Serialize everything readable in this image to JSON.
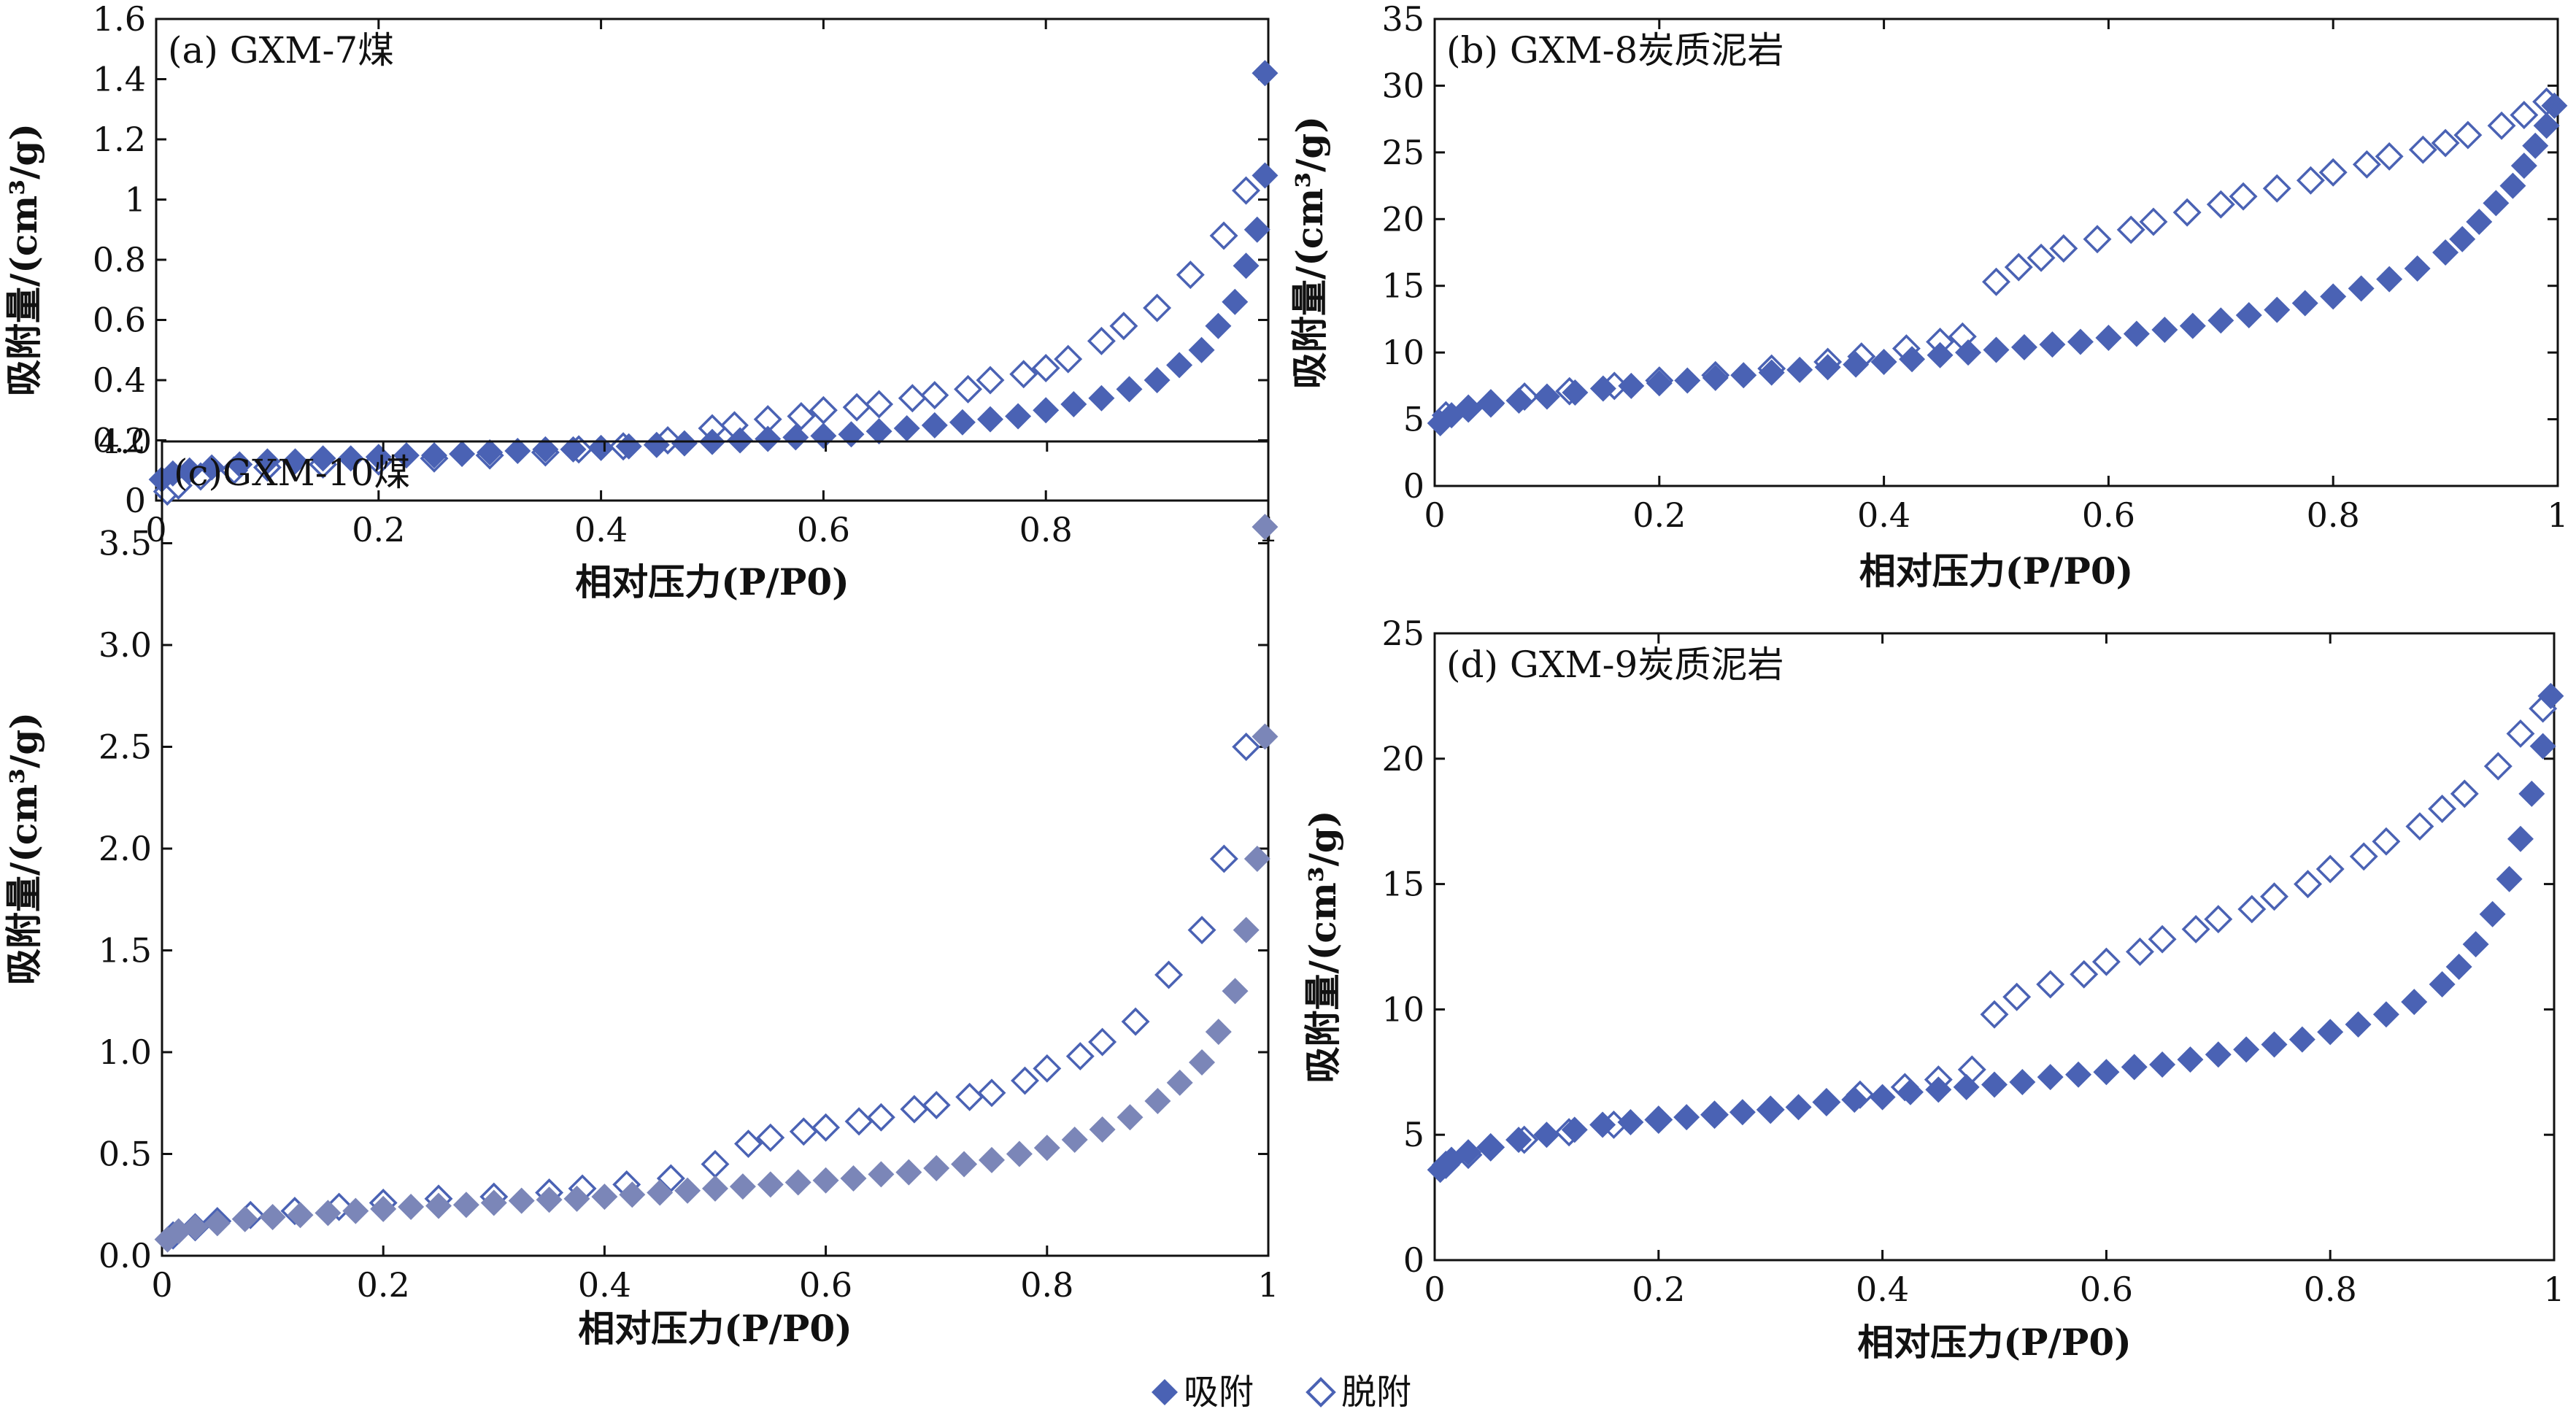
{
  "legend": {
    "adsorption_label": "吸附",
    "desorption_label": "脱附",
    "adsorption_marker": "filled-diamond-icon",
    "desorption_marker": "open-diamond-icon"
  },
  "colors": {
    "marker": "#4a62b4",
    "marker_alt": "#7b86b8",
    "axis": "#111111"
  },
  "chart_data": [
    {
      "type": "scatter",
      "title": "(a) GXM-7煤",
      "xlabel": "相对压力(P/P0)",
      "ylabel": "吸附量/(cm³/g)",
      "xlim": [
        0,
        1
      ],
      "ylim": [
        0,
        1.6
      ],
      "xticks": [
        "0",
        "0.2",
        "0.4",
        "0.6",
        "0.8",
        "1"
      ],
      "yticks": [
        "0",
        "0.2",
        "0.4",
        "0.6",
        "0.8",
        "1",
        "1.2",
        "1.4",
        "1.6"
      ],
      "series": [
        {
          "name": "吸附",
          "marker": "filled",
          "x": [
            0.005,
            0.015,
            0.03,
            0.05,
            0.075,
            0.1,
            0.125,
            0.15,
            0.175,
            0.2,
            0.225,
            0.25,
            0.275,
            0.3,
            0.325,
            0.35,
            0.375,
            0.4,
            0.425,
            0.45,
            0.475,
            0.5,
            0.525,
            0.55,
            0.575,
            0.6,
            0.625,
            0.65,
            0.675,
            0.7,
            0.725,
            0.75,
            0.775,
            0.8,
            0.825,
            0.85,
            0.875,
            0.9,
            0.92,
            0.94,
            0.955,
            0.97,
            0.98,
            0.99,
            0.997
          ],
          "y": [
            0.07,
            0.09,
            0.1,
            0.11,
            0.12,
            0.13,
            0.13,
            0.14,
            0.14,
            0.145,
            0.15,
            0.15,
            0.155,
            0.16,
            0.165,
            0.17,
            0.17,
            0.175,
            0.18,
            0.185,
            0.19,
            0.195,
            0.2,
            0.205,
            0.21,
            0.215,
            0.22,
            0.23,
            0.24,
            0.25,
            0.26,
            0.27,
            0.28,
            0.3,
            0.32,
            0.34,
            0.37,
            0.4,
            0.45,
            0.5,
            0.58,
            0.66,
            0.78,
            0.9,
            1.08
          ]
        },
        {
          "name": "脱附",
          "marker": "open",
          "x": [
            0.01,
            0.02,
            0.04,
            0.07,
            0.1,
            0.15,
            0.2,
            0.25,
            0.3,
            0.35,
            0.38,
            0.42,
            0.46,
            0.5,
            0.52,
            0.55,
            0.58,
            0.6,
            0.63,
            0.65,
            0.68,
            0.7,
            0.73,
            0.75,
            0.78,
            0.8,
            0.82,
            0.85,
            0.87,
            0.9,
            0.93,
            0.96,
            0.98
          ],
          "y": [
            0.03,
            0.05,
            0.08,
            0.1,
            0.11,
            0.12,
            0.13,
            0.14,
            0.15,
            0.16,
            0.17,
            0.18,
            0.2,
            0.24,
            0.25,
            0.27,
            0.28,
            0.3,
            0.31,
            0.32,
            0.34,
            0.35,
            0.37,
            0.4,
            0.42,
            0.44,
            0.47,
            0.53,
            0.58,
            0.64,
            0.75,
            0.88,
            1.03
          ]
        },
        {
          "name": "吸附",
          "marker": "filled",
          "x": [
            0.997
          ],
          "y": [
            1.42
          ]
        }
      ]
    },
    {
      "type": "scatter",
      "title": "(b) GXM-8炭质泥岩",
      "xlabel": "相对压力(P/P0)",
      "ylabel": "吸附量/(cm³/g)",
      "xlim": [
        0,
        1
      ],
      "ylim": [
        0,
        35
      ],
      "xticks": [
        "0",
        "0.2",
        "0.4",
        "0.6",
        "0.8",
        "1"
      ],
      "yticks": [
        "0",
        "5",
        "10",
        "15",
        "20",
        "25",
        "30",
        "35"
      ],
      "series": [
        {
          "name": "吸附",
          "marker": "filled",
          "x": [
            0.005,
            0.015,
            0.03,
            0.05,
            0.075,
            0.1,
            0.125,
            0.15,
            0.175,
            0.2,
            0.225,
            0.25,
            0.275,
            0.3,
            0.325,
            0.35,
            0.375,
            0.4,
            0.425,
            0.45,
            0.475,
            0.5,
            0.525,
            0.55,
            0.575,
            0.6,
            0.625,
            0.65,
            0.675,
            0.7,
            0.725,
            0.75,
            0.775,
            0.8,
            0.825,
            0.85,
            0.875,
            0.9,
            0.915,
            0.93,
            0.945,
            0.96,
            0.97,
            0.98,
            0.99,
            0.997
          ],
          "y": [
            4.7,
            5.3,
            5.8,
            6.1,
            6.4,
            6.7,
            7,
            7.3,
            7.5,
            7.7,
            7.9,
            8.1,
            8.3,
            8.5,
            8.7,
            8.9,
            9.1,
            9.3,
            9.5,
            9.8,
            10,
            10.2,
            10.4,
            10.6,
            10.8,
            11.1,
            11.4,
            11.7,
            12,
            12.4,
            12.8,
            13.2,
            13.7,
            14.2,
            14.8,
            15.5,
            16.3,
            17.5,
            18.5,
            19.8,
            21.2,
            22.5,
            24,
            25.5,
            27,
            28.5
          ]
        },
        {
          "name": "脱附",
          "marker": "open",
          "x": [
            0.01,
            0.03,
            0.05,
            0.08,
            0.12,
            0.16,
            0.2,
            0.25,
            0.3,
            0.35,
            0.38,
            0.42,
            0.45,
            0.47,
            0.5,
            0.52,
            0.54,
            0.56,
            0.59,
            0.62,
            0.64,
            0.67,
            0.7,
            0.72,
            0.75,
            0.78,
            0.8,
            0.83,
            0.85,
            0.88,
            0.9,
            0.92,
            0.95,
            0.97,
            0.99
          ],
          "y": [
            5.3,
            5.8,
            6.2,
            6.7,
            7.1,
            7.5,
            7.9,
            8.3,
            8.8,
            9.3,
            9.7,
            10.3,
            10.8,
            11.2,
            15.3,
            16.4,
            17.1,
            17.8,
            18.5,
            19.2,
            19.8,
            20.5,
            21.1,
            21.7,
            22.3,
            22.9,
            23.5,
            24.1,
            24.7,
            25.2,
            25.7,
            26.3,
            27,
            27.8,
            28.8
          ]
        }
      ]
    },
    {
      "type": "scatter",
      "title": "(c)GXM-10煤",
      "xlabel": "相对压力(P/P0)",
      "ylabel": "吸附量/(cm³/g)",
      "xlim": [
        0,
        1
      ],
      "ylim": [
        0,
        4.0
      ],
      "xticks": [
        "0",
        "0.2",
        "0.4",
        "0.6",
        "0.8",
        "1"
      ],
      "yticks": [
        "0.0",
        "0.5",
        "1.0",
        "1.5",
        "2.0",
        "2.5",
        "3.0",
        "3.5",
        "4.0"
      ],
      "series": [
        {
          "name": "吸附",
          "marker": "filled",
          "x": [
            0.005,
            0.015,
            0.03,
            0.05,
            0.075,
            0.1,
            0.125,
            0.15,
            0.175,
            0.2,
            0.225,
            0.25,
            0.275,
            0.3,
            0.325,
            0.35,
            0.375,
            0.4,
            0.425,
            0.45,
            0.475,
            0.5,
            0.525,
            0.55,
            0.575,
            0.6,
            0.625,
            0.65,
            0.675,
            0.7,
            0.725,
            0.75,
            0.775,
            0.8,
            0.825,
            0.85,
            0.875,
            0.9,
            0.92,
            0.94,
            0.955,
            0.97,
            0.98,
            0.99,
            0.997
          ],
          "y": [
            0.08,
            0.12,
            0.14,
            0.16,
            0.18,
            0.19,
            0.2,
            0.21,
            0.22,
            0.23,
            0.24,
            0.245,
            0.25,
            0.26,
            0.27,
            0.275,
            0.28,
            0.29,
            0.3,
            0.31,
            0.32,
            0.33,
            0.34,
            0.35,
            0.36,
            0.37,
            0.38,
            0.4,
            0.41,
            0.43,
            0.45,
            0.47,
            0.5,
            0.53,
            0.57,
            0.62,
            0.68,
            0.76,
            0.85,
            0.95,
            1.1,
            1.3,
            1.6,
            1.95,
            2.55
          ]
        },
        {
          "name": "脱附",
          "marker": "open",
          "x": [
            0.01,
            0.03,
            0.05,
            0.08,
            0.12,
            0.16,
            0.2,
            0.25,
            0.3,
            0.35,
            0.38,
            0.42,
            0.46,
            0.5,
            0.53,
            0.55,
            0.58,
            0.6,
            0.63,
            0.65,
            0.68,
            0.7,
            0.73,
            0.75,
            0.78,
            0.8,
            0.83,
            0.85,
            0.88,
            0.91,
            0.94,
            0.96,
            0.98
          ],
          "y": [
            0.1,
            0.14,
            0.17,
            0.2,
            0.22,
            0.24,
            0.26,
            0.28,
            0.29,
            0.31,
            0.33,
            0.35,
            0.38,
            0.45,
            0.55,
            0.58,
            0.61,
            0.63,
            0.66,
            0.68,
            0.72,
            0.74,
            0.78,
            0.8,
            0.86,
            0.92,
            0.98,
            1.05,
            1.15,
            1.38,
            1.6,
            1.95,
            2.5
          ]
        },
        {
          "name": "吸附",
          "marker": "filled",
          "x": [
            0.997
          ],
          "y": [
            3.58
          ]
        }
      ]
    },
    {
      "type": "scatter",
      "title": "(d) GXM-9炭质泥岩",
      "xlabel": "相对压力(P/P0)",
      "ylabel": "吸附量/(cm³/g)",
      "xlim": [
        0,
        1
      ],
      "ylim": [
        0,
        25
      ],
      "xticks": [
        "0",
        "0.2",
        "0.4",
        "0.6",
        "0.8",
        "1"
      ],
      "yticks": [
        "0",
        "5",
        "10",
        "15",
        "20",
        "25"
      ],
      "series": [
        {
          "name": "吸附",
          "marker": "filled",
          "x": [
            0.005,
            0.015,
            0.03,
            0.05,
            0.075,
            0.1,
            0.125,
            0.15,
            0.175,
            0.2,
            0.225,
            0.25,
            0.275,
            0.3,
            0.325,
            0.35,
            0.375,
            0.4,
            0.425,
            0.45,
            0.475,
            0.5,
            0.525,
            0.55,
            0.575,
            0.6,
            0.625,
            0.65,
            0.675,
            0.7,
            0.725,
            0.75,
            0.775,
            0.8,
            0.825,
            0.85,
            0.875,
            0.9,
            0.915,
            0.93,
            0.945,
            0.96,
            0.97,
            0.98,
            0.99,
            0.997
          ],
          "y": [
            3.6,
            4,
            4.3,
            4.5,
            4.8,
            5,
            5.2,
            5.4,
            5.5,
            5.6,
            5.7,
            5.8,
            5.9,
            6,
            6.1,
            6.3,
            6.4,
            6.5,
            6.7,
            6.8,
            6.9,
            7,
            7.1,
            7.3,
            7.4,
            7.5,
            7.7,
            7.8,
            8,
            8.2,
            8.4,
            8.6,
            8.8,
            9.1,
            9.4,
            9.8,
            10.3,
            11,
            11.7,
            12.6,
            13.8,
            15.2,
            16.8,
            18.6,
            20.5,
            22.5
          ]
        },
        {
          "name": "脱附",
          "marker": "open",
          "x": [
            0.01,
            0.03,
            0.05,
            0.08,
            0.12,
            0.16,
            0.2,
            0.25,
            0.3,
            0.35,
            0.38,
            0.42,
            0.45,
            0.48,
            0.5,
            0.52,
            0.55,
            0.58,
            0.6,
            0.63,
            0.65,
            0.68,
            0.7,
            0.73,
            0.75,
            0.78,
            0.8,
            0.83,
            0.85,
            0.88,
            0.9,
            0.92,
            0.95,
            0.97,
            0.99
          ],
          "y": [
            3.8,
            4.2,
            4.5,
            4.8,
            5.1,
            5.4,
            5.6,
            5.8,
            6,
            6.3,
            6.6,
            6.9,
            7.2,
            7.6,
            9.8,
            10.5,
            11,
            11.4,
            11.9,
            12.3,
            12.8,
            13.2,
            13.6,
            14,
            14.5,
            15,
            15.6,
            16.1,
            16.7,
            17.3,
            18,
            18.6,
            19.7,
            21,
            22
          ]
        }
      ]
    }
  ]
}
